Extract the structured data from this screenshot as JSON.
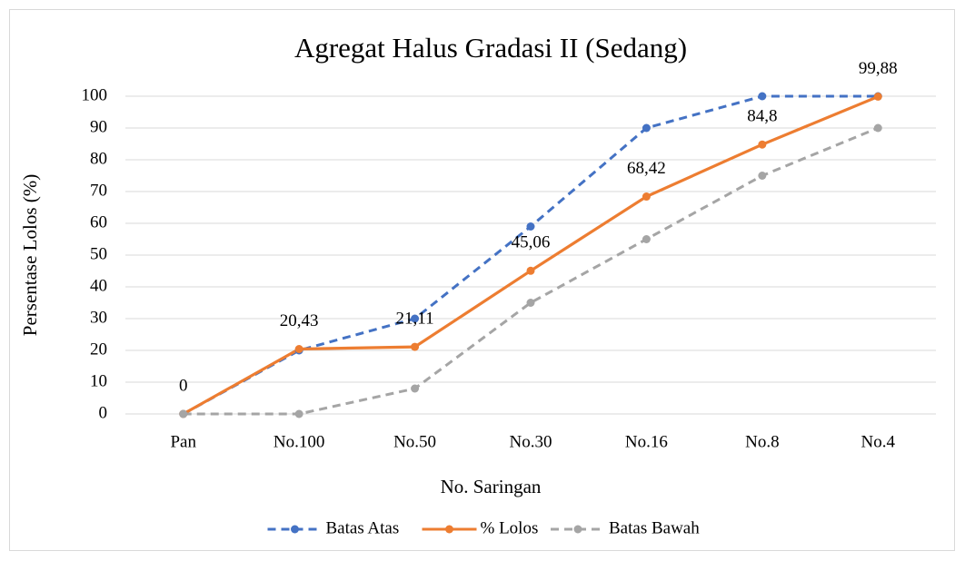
{
  "chart_data": {
    "type": "line",
    "title": "Agregat Halus Gradasi II (Sedang)",
    "x_label": "No. Saringan",
    "y_label": "Persentase Lolos (%)",
    "categories": [
      "Pan",
      "No.100",
      "No.50",
      "No.30",
      "No.16",
      "No.8",
      "No.4"
    ],
    "series": [
      {
        "name": "Batas Atas",
        "color": "#4472c4",
        "dashed": true,
        "values": [
          0,
          20,
          30,
          59,
          90,
          100,
          100
        ]
      },
      {
        "name": "% Lolos",
        "color": "#ed7d31",
        "dashed": false,
        "values": [
          0,
          20.43,
          21.11,
          45.06,
          68.42,
          84.8,
          99.88
        ],
        "value_labels": [
          "0",
          "20,43",
          "21,11",
          "45,06",
          "68,42",
          "84,8",
          "99,88"
        ]
      },
      {
        "name": "Batas Bawah",
        "color": "#a5a5a5",
        "dashed": true,
        "values": [
          0,
          0,
          8,
          35,
          55,
          75,
          90
        ]
      }
    ],
    "ylim": [
      0,
      100
    ],
    "yticks": [
      0,
      10,
      20,
      30,
      40,
      50,
      60,
      70,
      80,
      90,
      100
    ],
    "grid": true,
    "legend": "bottom"
  }
}
